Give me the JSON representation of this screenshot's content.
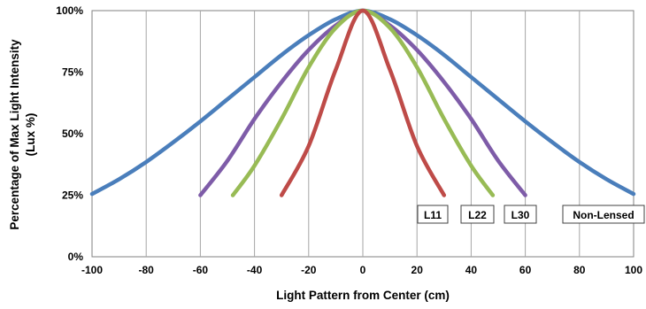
{
  "chart_data": {
    "type": "line",
    "title": "",
    "xlabel": "Light Pattern from Center (cm)",
    "ylabel_line1": "Percentage of Max Light Intensity",
    "ylabel_line2": "(Lux %)",
    "xlim": [
      -100,
      100
    ],
    "ylim": [
      0,
      100
    ],
    "x_ticks": [
      "-100",
      "-80",
      "-60",
      "-40",
      "-20",
      "0",
      "20",
      "40",
      "60",
      "80",
      "100"
    ],
    "y_ticks": [
      "0%",
      "25%",
      "50%",
      "75%",
      "100%"
    ],
    "grid": "vertical",
    "legend_placement": "inline labels near each curve end",
    "series": [
      {
        "name": "Non-Lensed",
        "color": "#4a7ebb",
        "x": [
          -100,
          -90,
          -80,
          -70,
          -60,
          -50,
          -40,
          -30,
          -20,
          -10,
          0,
          10,
          20,
          30,
          40,
          50,
          60,
          70,
          80,
          90,
          100
        ],
        "y": [
          25.5,
          31.5,
          38.5,
          46.5,
          55,
          64,
          73,
          82,
          90,
          96.5,
          100,
          96.5,
          90,
          82,
          73,
          64,
          55,
          46.5,
          38.5,
          31.5,
          25.5
        ]
      },
      {
        "name": "L30",
        "color": "#7e5ca8",
        "x": [
          -60,
          -50,
          -40,
          -30,
          -20,
          -10,
          0,
          10,
          20,
          30,
          40,
          50,
          60
        ],
        "y": [
          25,
          39,
          56,
          71,
          84,
          94,
          100,
          94,
          84,
          71,
          56,
          39,
          25
        ]
      },
      {
        "name": "L22",
        "color": "#98bb55",
        "x": [
          -48,
          -40,
          -30,
          -20,
          -10,
          0,
          10,
          20,
          30,
          40,
          48
        ],
        "y": [
          25,
          37,
          56,
          77,
          93,
          100,
          93,
          77,
          56,
          37,
          25
        ]
      },
      {
        "name": "L11",
        "color": "#be4b48",
        "x": [
          -30,
          -20,
          -10,
          0,
          10,
          20,
          30
        ],
        "y": [
          25,
          45,
          76,
          100,
          76,
          45,
          25
        ]
      }
    ],
    "legend_labels": [
      "L11",
      "L22",
      "L30",
      "Non-Lensed"
    ]
  }
}
